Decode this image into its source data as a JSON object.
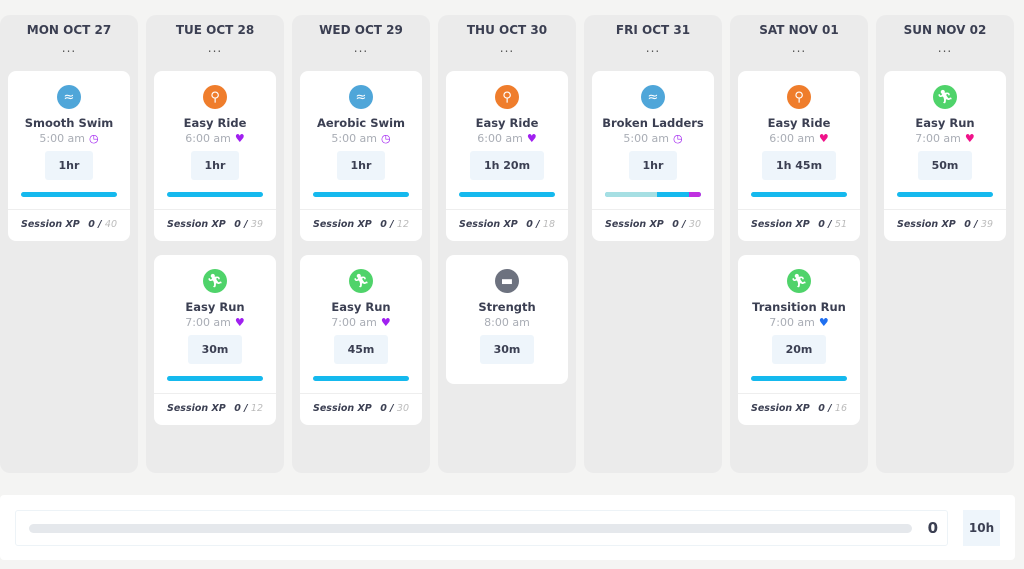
{
  "colors": {
    "swim": "#4fa6d9",
    "bike": "#ef7d2c",
    "run": "#4fd36a",
    "strength": "#6d727f",
    "bar": "#15b9ee"
  },
  "days": [
    {
      "label": "MON OCT 27",
      "menu": "...",
      "sessions": [
        {
          "type": "swim",
          "icon": "swim-icon",
          "title": "Smooth Swim",
          "time": "5:00 am",
          "badge": "clock",
          "badge_color": "#a020f0",
          "duration": "1hr",
          "xp_label": "Session XP",
          "xp": "0 /",
          "xp_max": "40"
        }
      ]
    },
    {
      "label": "TUE OCT 28",
      "menu": "...",
      "sessions": [
        {
          "type": "bike",
          "icon": "bike-icon",
          "title": "Easy Ride",
          "time": "6:00 am",
          "badge": "heart",
          "badge_color": "#a020f0",
          "duration": "1hr",
          "xp_label": "Session XP",
          "xp": "0 /",
          "xp_max": "39"
        },
        {
          "type": "run",
          "icon": "run-icon",
          "title": "Easy Run",
          "time": "7:00 am",
          "badge": "heart",
          "badge_color": "#a020f0",
          "duration": "30m",
          "xp_label": "Session XP",
          "xp": "0 /",
          "xp_max": "12"
        }
      ]
    },
    {
      "label": "WED OCT 29",
      "menu": "...",
      "sessions": [
        {
          "type": "swim",
          "icon": "swim-icon",
          "title": "Aerobic Swim",
          "time": "5:00 am",
          "badge": "clock",
          "badge_color": "#a020f0",
          "duration": "1hr",
          "xp_label": "Session XP",
          "xp": "0 /",
          "xp_max": "12"
        },
        {
          "type": "run",
          "icon": "run-icon",
          "title": "Easy Run",
          "time": "7:00 am",
          "badge": "heart",
          "badge_color": "#a020f0",
          "duration": "45m",
          "xp_label": "Session XP",
          "xp": "0 /",
          "xp_max": "30"
        }
      ]
    },
    {
      "label": "THU OCT 30",
      "menu": "...",
      "sessions": [
        {
          "type": "bike",
          "icon": "bike-icon",
          "title": "Easy Ride",
          "time": "6:00 am",
          "badge": "heart",
          "badge_color": "#a020f0",
          "duration": "1h 20m",
          "xp_label": "Session XP",
          "xp": "0 /",
          "xp_max": "18"
        },
        {
          "type": "strength",
          "icon": "dumbbell-icon",
          "title": "Strength",
          "time": "8:00 am",
          "duration": "30m"
        }
      ]
    },
    {
      "label": "FRI OCT 31",
      "menu": "...",
      "sessions": [
        {
          "type": "swim",
          "icon": "swim-icon",
          "title": "Broken Ladders",
          "time": "5:00 am",
          "badge": "clock",
          "badge_color": "#a020f0",
          "duration": "1hr",
          "segments": [
            {
              "pct": 54,
              "color": "#a6dfe3"
            },
            {
              "pct": 34,
              "color": "#15b9ee"
            },
            {
              "pct": 12,
              "color": "#c030e0"
            }
          ],
          "xp_label": "Session XP",
          "xp": "0 /",
          "xp_max": "30"
        }
      ]
    },
    {
      "label": "SAT NOV 01",
      "menu": "...",
      "sessions": [
        {
          "type": "bike",
          "icon": "bike-icon",
          "title": "Easy Ride",
          "time": "6:00 am",
          "badge": "heart",
          "badge_color": "#f0128a",
          "duration": "1h 45m",
          "xp_label": "Session XP",
          "xp": "0 /",
          "xp_max": "51"
        },
        {
          "type": "run",
          "icon": "run-icon",
          "title": "Transition Run",
          "time": "7:00 am",
          "badge": "heart",
          "badge_color": "#1f6ff0",
          "duration": "20m",
          "xp_label": "Session XP",
          "xp": "0 /",
          "xp_max": "16"
        }
      ]
    },
    {
      "label": "SUN NOV 02",
      "menu": "...",
      "sessions": [
        {
          "type": "run",
          "icon": "run-icon",
          "title": "Easy Run",
          "time": "7:00 am",
          "badge": "heart",
          "badge_color": "#f0128a",
          "duration": "50m",
          "xp_label": "Session XP",
          "xp": "0 /",
          "xp_max": "39"
        }
      ]
    }
  ],
  "summary": {
    "progress_pct": 0,
    "value": "0",
    "goal": "10h"
  }
}
